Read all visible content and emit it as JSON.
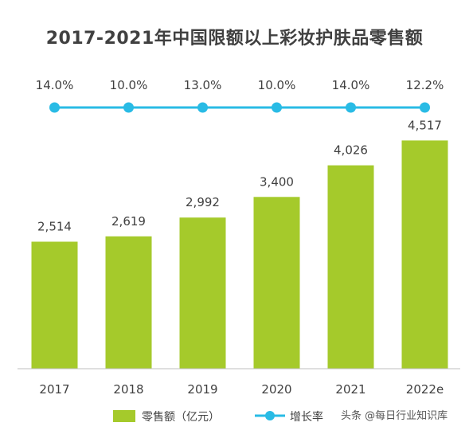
{
  "chart_data": {
    "type": "bar",
    "title": "2017-2021年中国限额以上彩妆护肤品零售额",
    "categories": [
      "2017",
      "2018",
      "2019",
      "2020",
      "2021",
      "2022e"
    ],
    "series": [
      {
        "name": "零售额（亿元）",
        "type": "bar",
        "values": [
          2514,
          2619,
          2992,
          3400,
          4026,
          4517
        ],
        "labels": [
          "2,514",
          "2,619",
          "2,992",
          "3,400",
          "4,026",
          "4,517"
        ],
        "color": "#A5CA2B"
      },
      {
        "name": "增长率",
        "type": "line",
        "values": [
          14.0,
          10.0,
          13.0,
          10.0,
          14.0,
          12.2
        ],
        "labels": [
          "14.0%",
          "10.0%",
          "13.0%",
          "10.0%",
          "14.0%",
          "12.2%"
        ],
        "color": "#29BBE5"
      }
    ],
    "legend_position": "bottom",
    "grid": false
  },
  "watermark": "头条 @每日行业知识库"
}
